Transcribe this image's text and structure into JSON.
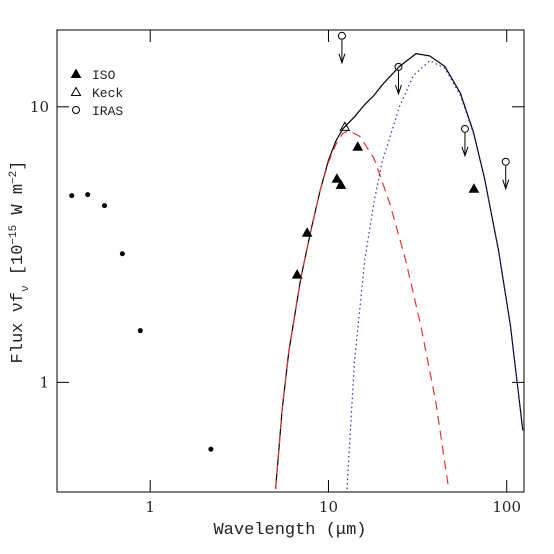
{
  "chart_data": {
    "type": "scatter",
    "x_label": "Wavelength (μm)",
    "y_label": [
      "Flux νf",
      "ν",
      " [10",
      "−15",
      " W m",
      "−2",
      "]"
    ],
    "xlog": true,
    "ylog": true,
    "xlim": [
      0.3,
      125
    ],
    "ylim": [
      0.4,
      19
    ],
    "xticks": [
      1,
      10,
      100
    ],
    "yticks": [
      1,
      10
    ],
    "legend": "upper left",
    "series": [
      {
        "marker": "dot",
        "color": "#000000",
        "x": [
          0.363,
          0.446,
          0.554,
          0.698,
          0.88,
          2.19
        ],
        "values": [
          4.76,
          4.8,
          4.38,
          2.93,
          1.54,
          0.572
        ]
      },
      {
        "name": "ISO",
        "marker": "filled-triangle",
        "color": "#000000",
        "x": [
          6.67,
          7.59,
          11.15,
          11.74,
          14.6,
          65.5
        ],
        "values": [
          2.46,
          3.49,
          5.48,
          5.21,
          7.16,
          5.04
        ]
      },
      {
        "name": "Keck",
        "marker": "open-triangle",
        "color": "#000000",
        "x": [
          12.36
        ],
        "values": [
          8.46
        ]
      },
      {
        "name": "IRAS",
        "marker": "open-circle",
        "color": "#000000",
        "upper_limit": true,
        "x": [
          11.9,
          24.7,
          58.3,
          98.7
        ],
        "values": [
          18.1,
          13.96,
          8.32,
          6.32
        ]
      }
    ],
    "lines": [
      {
        "style": "solid",
        "color": "#000000",
        "x": [
          5.05,
          5.5,
          6,
          7,
          8,
          9,
          10,
          11,
          12,
          14,
          16,
          18,
          20,
          25,
          31,
          37,
          45,
          55,
          65,
          75,
          90,
          105,
          123
        ],
        "values": [
          0.41,
          0.8,
          1.3,
          2.4,
          3.6,
          5,
          6.4,
          7.5,
          8.3,
          9.2,
          10.2,
          11,
          12,
          14,
          15.6,
          15.3,
          14,
          11.2,
          8.1,
          5.5,
          3,
          1.6,
          0.67
        ]
      },
      {
        "style": "dashed",
        "color": "#e8322f",
        "x": [
          5.05,
          5.5,
          6,
          7,
          8,
          9,
          10,
          11,
          12,
          13,
          15,
          18,
          22,
          27,
          33,
          40,
          47
        ],
        "values": [
          0.41,
          0.8,
          1.3,
          2.4,
          3.6,
          5,
          6.3,
          7.3,
          8,
          8.2,
          7.8,
          6.5,
          4.5,
          2.8,
          1.6,
          0.85,
          0.42
        ]
      },
      {
        "style": "dotted",
        "color": "#2b2bd6",
        "x": [
          12.7,
          14,
          16,
          18,
          20,
          25,
          30,
          37,
          45,
          55,
          65,
          75,
          90,
          105,
          123
        ],
        "values": [
          0.41,
          1.2,
          2.8,
          4.5,
          6.3,
          10,
          13,
          14.7,
          13.8,
          11,
          8,
          5.5,
          3,
          1.6,
          0.67
        ]
      }
    ]
  }
}
